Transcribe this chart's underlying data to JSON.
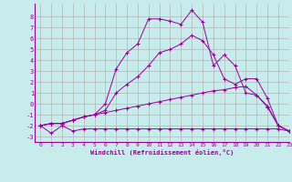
{
  "xlabel": "Windchill (Refroidissement éolien,°C)",
  "bg_color": "#c8ecec",
  "line_color": "#990099",
  "grid_color": "#aaaaaa",
  "x": [
    0,
    1,
    2,
    3,
    4,
    5,
    6,
    7,
    8,
    9,
    10,
    11,
    12,
    13,
    14,
    15,
    16,
    17,
    18,
    19,
    20,
    21,
    22,
    23
  ],
  "series1": [
    -2,
    -2.7,
    -2,
    -2.5,
    -2.3,
    -2.3,
    -2.3,
    -2.3,
    -2.3,
    -2.3,
    -2.3,
    -2.3,
    -2.3,
    -2.3,
    -2.3,
    -2.3,
    -2.3,
    -2.3,
    -2.3,
    -2.3,
    -2.3,
    -2.3,
    -2.3,
    -2.5
  ],
  "series2": [
    -2,
    -1.8,
    -1.8,
    -1.5,
    -1.2,
    -1.0,
    -0.8,
    -0.6,
    -0.4,
    -0.2,
    0.0,
    0.2,
    0.4,
    0.6,
    0.8,
    1.0,
    1.2,
    1.3,
    1.5,
    1.6,
    0.8,
    -0.3,
    -2.0,
    -2.5
  ],
  "series3": [
    -2,
    -1.8,
    -1.8,
    -1.5,
    -1.2,
    -1.0,
    -0.6,
    1.0,
    1.8,
    2.5,
    3.5,
    4.7,
    5.0,
    5.5,
    6.3,
    5.8,
    4.5,
    2.3,
    1.8,
    2.3,
    2.3,
    0.5,
    -2.0,
    -2.5
  ],
  "series4": [
    -2,
    -1.8,
    -1.8,
    -1.5,
    -1.2,
    -1.0,
    0.0,
    3.2,
    4.7,
    5.5,
    7.8,
    7.8,
    7.6,
    7.3,
    8.6,
    7.5,
    3.5,
    4.5,
    3.5,
    1.0,
    0.8,
    -0.2,
    -2.0,
    -2.5
  ],
  "xlim": [
    -0.5,
    23
  ],
  "ylim": [
    -3.5,
    9.2
  ],
  "yticks": [
    -3,
    -2,
    -1,
    0,
    1,
    2,
    3,
    4,
    5,
    6,
    7,
    8
  ],
  "xticks": [
    0,
    1,
    2,
    3,
    4,
    5,
    6,
    7,
    8,
    9,
    10,
    11,
    12,
    13,
    14,
    15,
    16,
    17,
    18,
    19,
    20,
    21,
    22,
    23
  ]
}
